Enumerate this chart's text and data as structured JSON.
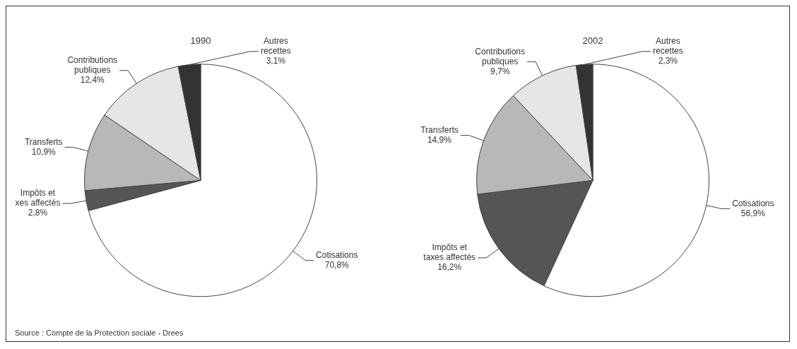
{
  "chart_data": [
    {
      "type": "pie",
      "title": "1990",
      "categories": [
        "Cotisations",
        "Impôts et\nxes affectés",
        "Transferts",
        "Contributions\npubliques",
        "Autres\nrecettes"
      ],
      "values": [
        70.8,
        2.8,
        10.9,
        12.4,
        3.1
      ],
      "value_labels": [
        "70,8%",
        "2,8%",
        "10,9%",
        "12,4%",
        "3,1%"
      ],
      "colors": [
        "#ffffff",
        "#555555",
        "#b8b8b8",
        "#e6e6e6",
        "#333333"
      ],
      "annotations": [
        "Source : Compte de la Protection sociale - Drees"
      ],
      "legend": false
    },
    {
      "type": "pie",
      "title": "2002",
      "categories": [
        "Cotisations",
        "Impôts et\ntaxes affectés",
        "Transferts",
        "Contributions\npubliques",
        "Autres\nrecettes"
      ],
      "values": [
        56.9,
        16.2,
        14.9,
        9.7,
        2.3
      ],
      "value_labels": [
        "56,9%",
        "16,2%",
        "14,9%",
        "9,7%",
        "2,3%"
      ],
      "colors": [
        "#ffffff",
        "#555555",
        "#b8b8b8",
        "#e6e6e6",
        "#333333"
      ],
      "legend": false
    }
  ]
}
